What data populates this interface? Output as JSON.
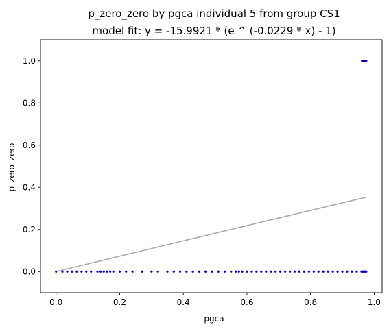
{
  "chart_data": {
    "type": "scatter",
    "title": "p_zero_zero by pgca individual 5 from group CS1",
    "subtitle": "model fit: y = -15.9921 * (e ^ (-0.0229 * x) - 1)",
    "xlabel": "pgca",
    "ylabel": "p_zero_zero",
    "xlim": [
      -0.049,
      1.025
    ],
    "ylim": [
      -0.1,
      1.1
    ],
    "xticks": [
      0.0,
      0.2,
      0.4,
      0.6,
      0.8,
      1.0
    ],
    "xtick_labels": [
      "0.0",
      "0.2",
      "0.4",
      "0.6",
      "0.8",
      "1.0"
    ],
    "yticks": [
      0.0,
      0.2,
      0.4,
      0.6,
      0.8,
      1.0
    ],
    "ytick_labels": [
      "0.0",
      "0.2",
      "0.4",
      "0.6",
      "0.8",
      "1.0"
    ],
    "grid": false,
    "colors": {
      "points": "#0000cc",
      "fit_line": "#aaaaaa"
    },
    "fit_function": {
      "a": -15.9921,
      "b": -0.0229,
      "x_range": [
        0.0,
        0.975
      ]
    },
    "series": [
      {
        "kind": "points",
        "x": [
          0.0,
          0.02,
          0.035,
          0.05,
          0.065,
          0.08,
          0.095,
          0.11,
          0.13,
          0.14,
          0.15,
          0.16,
          0.17,
          0.18,
          0.2,
          0.22,
          0.24,
          0.27,
          0.3,
          0.32,
          0.35,
          0.37,
          0.39,
          0.41,
          0.43,
          0.45,
          0.47,
          0.49,
          0.51,
          0.53,
          0.55,
          0.565,
          0.575,
          0.585,
          0.6,
          0.615,
          0.63,
          0.645,
          0.66,
          0.675,
          0.69,
          0.705,
          0.72,
          0.735,
          0.75,
          0.765,
          0.78,
          0.795,
          0.81,
          0.825,
          0.84,
          0.855,
          0.87,
          0.885,
          0.9,
          0.915,
          0.93,
          0.945,
          0.96,
          0.962,
          0.965,
          0.968,
          0.97,
          0.972,
          0.975
        ],
        "y": [
          0,
          0,
          0,
          0,
          0,
          0,
          0,
          0,
          0,
          0,
          0,
          0,
          0,
          0,
          0,
          0,
          0,
          0,
          0,
          0,
          0,
          0,
          0,
          0,
          0,
          0,
          0,
          0,
          0,
          0,
          0,
          0,
          0,
          0,
          0,
          0,
          0,
          0,
          0,
          0,
          0,
          0,
          0,
          0,
          0,
          0,
          0,
          0,
          0,
          0,
          0,
          0,
          0,
          0,
          0,
          0,
          0,
          0,
          0,
          0,
          0,
          0,
          0,
          0,
          0
        ]
      },
      {
        "kind": "points",
        "x": [
          0.962,
          0.965,
          0.968,
          0.97,
          0.972,
          0.975
        ],
        "y": [
          1,
          1,
          1,
          1,
          1,
          1
        ]
      }
    ]
  }
}
